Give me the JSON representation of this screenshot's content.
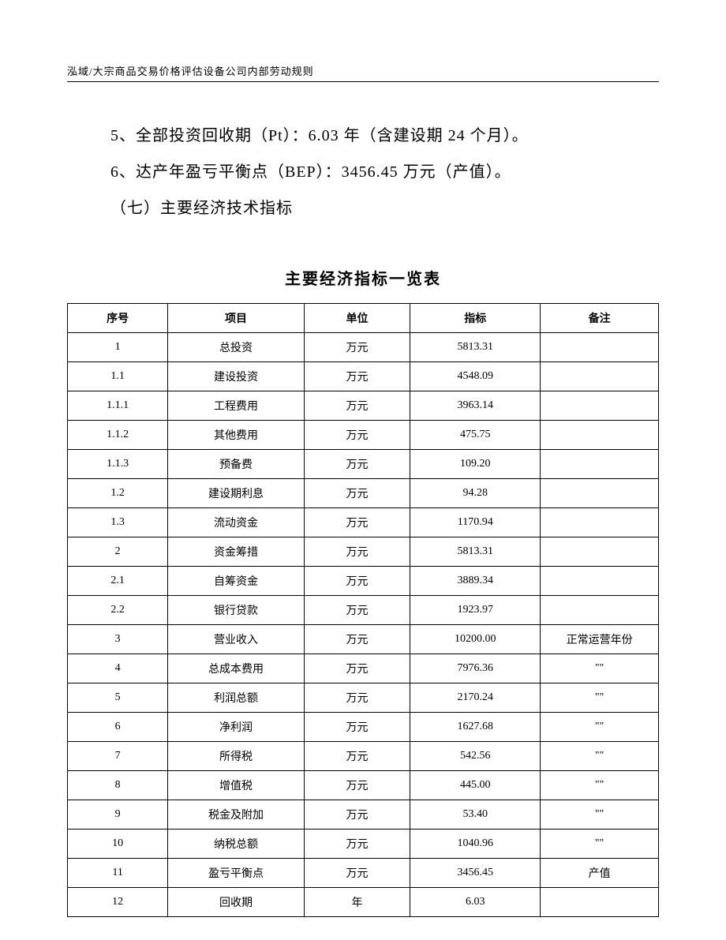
{
  "header": {
    "breadcrumb": "泓域/大宗商品交易价格评估设备公司内部劳动规则"
  },
  "paragraphs": {
    "p1": "5、全部投资回收期（Pt）：6.03 年（含建设期 24 个月）。",
    "p2": "6、达产年盈亏平衡点（BEP）：3456.45 万元（产值）。",
    "p3": "（七）主要经济技术指标"
  },
  "table": {
    "title": "主要经济指标一览表",
    "columns": {
      "seq": "序号",
      "item": "项目",
      "unit": "单位",
      "value": "指标",
      "remark": "备注"
    },
    "rows": [
      {
        "seq": "1",
        "item": "总投资",
        "unit": "万元",
        "value": "5813.31",
        "remark": ""
      },
      {
        "seq": "1.1",
        "item": "建设投资",
        "unit": "万元",
        "value": "4548.09",
        "remark": ""
      },
      {
        "seq": "1.1.1",
        "item": "工程费用",
        "unit": "万元",
        "value": "3963.14",
        "remark": ""
      },
      {
        "seq": "1.1.2",
        "item": "其他费用",
        "unit": "万元",
        "value": "475.75",
        "remark": ""
      },
      {
        "seq": "1.1.3",
        "item": "预备费",
        "unit": "万元",
        "value": "109.20",
        "remark": ""
      },
      {
        "seq": "1.2",
        "item": "建设期利息",
        "unit": "万元",
        "value": "94.28",
        "remark": ""
      },
      {
        "seq": "1.3",
        "item": "流动资金",
        "unit": "万元",
        "value": "1170.94",
        "remark": ""
      },
      {
        "seq": "2",
        "item": "资金筹措",
        "unit": "万元",
        "value": "5813.31",
        "remark": ""
      },
      {
        "seq": "2.1",
        "item": "自筹资金",
        "unit": "万元",
        "value": "3889.34",
        "remark": ""
      },
      {
        "seq": "2.2",
        "item": "银行贷款",
        "unit": "万元",
        "value": "1923.97",
        "remark": ""
      },
      {
        "seq": "3",
        "item": "营业收入",
        "unit": "万元",
        "value": "10200.00",
        "remark": "正常运营年份"
      },
      {
        "seq": "4",
        "item": "总成本费用",
        "unit": "万元",
        "value": "7976.36",
        "remark": "\"\""
      },
      {
        "seq": "5",
        "item": "利润总额",
        "unit": "万元",
        "value": "2170.24",
        "remark": "\"\""
      },
      {
        "seq": "6",
        "item": "净利润",
        "unit": "万元",
        "value": "1627.68",
        "remark": "\"\""
      },
      {
        "seq": "7",
        "item": "所得税",
        "unit": "万元",
        "value": "542.56",
        "remark": "\"\""
      },
      {
        "seq": "8",
        "item": "增值税",
        "unit": "万元",
        "value": "445.00",
        "remark": "\"\""
      },
      {
        "seq": "9",
        "item": "税金及附加",
        "unit": "万元",
        "value": "53.40",
        "remark": "\"\""
      },
      {
        "seq": "10",
        "item": "纳税总额",
        "unit": "万元",
        "value": "1040.96",
        "remark": "\"\""
      },
      {
        "seq": "11",
        "item": "盈亏平衡点",
        "unit": "万元",
        "value": "3456.45",
        "remark": "产值"
      },
      {
        "seq": "12",
        "item": "回收期",
        "unit": "年",
        "value": "6.03",
        "remark": ""
      }
    ]
  }
}
